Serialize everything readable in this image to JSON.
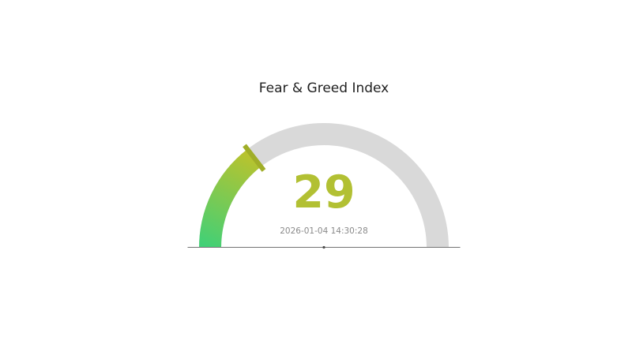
{
  "page": {
    "background": "#ffffff"
  },
  "chart_data": {
    "type": "gauge",
    "title": "Fear & Greed Index",
    "value": 29,
    "value_label": "29",
    "range": [
      0,
      100
    ],
    "angle_span_deg": 180,
    "timestamp": "2026-01-04 14:30:28",
    "legend": "none",
    "grid": false,
    "colors": {
      "arc_gradient_start": "#42d076",
      "arc_gradient_end": "#b8c32e",
      "arc_remainder": "#d9d9d9",
      "threshold_marker": "#a0ae28",
      "value_text": "#b2c033",
      "title_text": "#1f1f1f",
      "timestamp_text": "#8a8a8a",
      "baseline": "#737373",
      "center_dot": "#4d4d4d"
    }
  }
}
